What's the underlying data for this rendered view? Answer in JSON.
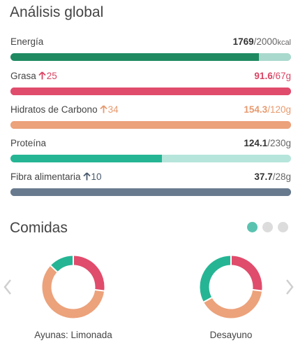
{
  "global": {
    "title": "Análisis global",
    "metrics": [
      {
        "name": "Energía",
        "delta": "",
        "delta_dir": "",
        "value": "1769",
        "goal": "/2000",
        "unit": "kcal",
        "fraction": 0.885,
        "value_color": "#333333",
        "bar_fill": "#1f8a62",
        "bar_track": "#a9d9cc"
      },
      {
        "name": "Grasa",
        "delta": "25",
        "delta_dir": "up",
        "value": "91.6",
        "goal": "/67",
        "unit": "g",
        "fraction": 1.0,
        "value_color": "#d94463",
        "bar_fill": "#e04c6c",
        "bar_track": "#e04c6c"
      },
      {
        "name": "Hidratos de Carbono",
        "delta": "34",
        "delta_dir": "up",
        "value": "154.3",
        "goal": "/120",
        "unit": "g",
        "fraction": 1.0,
        "value_color": "#e79a6e",
        "bar_fill": "#eca27b",
        "bar_track": "#eca27b"
      },
      {
        "name": "Proteína",
        "delta": "",
        "delta_dir": "",
        "value": "124.1",
        "goal": "/230",
        "unit": "g",
        "fraction": 0.54,
        "value_color": "#333333",
        "bar_fill": "#25b594",
        "bar_track": "#b6e5dc"
      },
      {
        "name": "Fibra alimentaria",
        "delta": "10",
        "delta_dir": "up",
        "value": "37.7",
        "goal": "/28",
        "unit": "g",
        "fraction": 1.0,
        "value_color": "#333333",
        "bar_fill": "#687a8e",
        "bar_track": "#687a8e"
      }
    ],
    "delta_colors": [
      "",
      "#d94463",
      "#e79a6e",
      "",
      "#4a5a6e"
    ]
  },
  "meals": {
    "title": "Comidas",
    "pager": {
      "count": 3,
      "active": 0
    },
    "icons": {
      "left": "chevron-left-icon",
      "right": "chevron-right-icon"
    },
    "items": [
      {
        "label": "Ayunas: Limonada",
        "segments": [
          {
            "name": "Grasa",
            "fraction": 0.27,
            "color": "#e04c6c"
          },
          {
            "name": "Hidratos de Carbono",
            "fraction": 0.6,
            "color": "#eca27b"
          },
          {
            "name": "Proteína",
            "fraction": 0.13,
            "color": "#25b594"
          }
        ]
      },
      {
        "label": "Desayuno",
        "segments": [
          {
            "name": "Grasa",
            "fraction": 0.27,
            "color": "#e04c6c"
          },
          {
            "name": "Hidratos de Carbono",
            "fraction": 0.4,
            "color": "#eca27b"
          },
          {
            "name": "Proteína",
            "fraction": 0.33,
            "color": "#25b594"
          }
        ]
      }
    ]
  }
}
